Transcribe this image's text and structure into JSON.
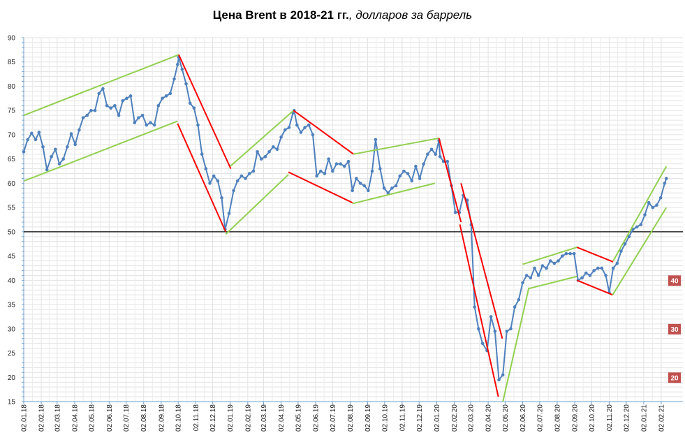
{
  "title": {
    "bold": "Цена Brent в 2018-21 гг.",
    "italic": ", долларов за баррель"
  },
  "colors": {
    "series": "#4f81bd",
    "up_channel": "#92d050",
    "down_channel": "#ff0000",
    "reference_line": "#000000",
    "badge": "#c0504d"
  },
  "chart_data": {
    "type": "line",
    "title": "Цена Brent в 2018-21 гг., долларов за баррель",
    "ylim": [
      15,
      90
    ],
    "y_ticks": [
      90,
      85,
      80,
      75,
      70,
      65,
      60,
      55,
      50,
      45,
      40,
      35,
      30,
      25,
      20,
      15
    ],
    "x_range": [
      "02.01.18",
      "11.02.21"
    ],
    "x_ticks": [
      "02.01.18",
      "02.02.18",
      "02.03.18",
      "02.04.18",
      "02.05.18",
      "02.06.18",
      "02.07.18",
      "02.08.18",
      "02.09.18",
      "02.10.18",
      "02.11.18",
      "02.12.18",
      "02.01.19",
      "02.02.19",
      "02.03.19",
      "02.04.19",
      "02.05.19",
      "02.06.19",
      "02.07.19",
      "02.08.19",
      "02.09.19",
      "02.10.19",
      "02.11.19",
      "02.12.19",
      "02.01.20",
      "02.02.20",
      "02.03.20",
      "02.04.20",
      "02.05.20",
      "02.06.20",
      "02.07.20",
      "02.08.20",
      "02.09.20",
      "02.10.20",
      "02.11.20",
      "02.12.20",
      "02.01.21",
      "02.02.21"
    ],
    "grid": true,
    "reference_line": 50,
    "series": [
      {
        "name": "",
        "points": [
          [
            "02.01.18",
            66.5
          ],
          [
            "09.01.18",
            69.0
          ],
          [
            "16.01.18",
            70.3
          ],
          [
            "23.01.18",
            69.0
          ],
          [
            "29.01.18",
            70.5
          ],
          [
            "05.02.18",
            67.5
          ],
          [
            "12.02.18",
            62.8
          ],
          [
            "20.02.18",
            65.5
          ],
          [
            "27.02.18",
            67.0
          ],
          [
            "06.03.18",
            64.0
          ],
          [
            "13.03.18",
            65.0
          ],
          [
            "20.03.18",
            67.5
          ],
          [
            "27.03.18",
            70.2
          ],
          [
            "03.04.18",
            68.0
          ],
          [
            "10.04.18",
            71.0
          ],
          [
            "17.04.18",
            73.5
          ],
          [
            "24.04.18",
            74.0
          ],
          [
            "01.05.18",
            75.0
          ],
          [
            "08.05.18",
            75.0
          ],
          [
            "15.05.18",
            78.5
          ],
          [
            "22.05.18",
            79.5
          ],
          [
            "29.05.18",
            76.0
          ],
          [
            "05.06.18",
            75.5
          ],
          [
            "12.06.18",
            76.0
          ],
          [
            "19.06.18",
            74.0
          ],
          [
            "26.06.18",
            77.0
          ],
          [
            "03.07.18",
            77.5
          ],
          [
            "10.07.18",
            78.0
          ],
          [
            "17.07.18",
            72.5
          ],
          [
            "24.07.18",
            73.5
          ],
          [
            "31.07.18",
            74.0
          ],
          [
            "07.08.18",
            72.0
          ],
          [
            "14.08.18",
            72.5
          ],
          [
            "21.08.18",
            72.0
          ],
          [
            "28.08.18",
            76.0
          ],
          [
            "04.09.18",
            77.5
          ],
          [
            "11.09.18",
            78.0
          ],
          [
            "18.09.18",
            78.5
          ],
          [
            "25.09.18",
            81.5
          ],
          [
            "01.10.18",
            84.5
          ],
          [
            "03.10.18",
            86.0
          ],
          [
            "09.10.18",
            83.5
          ],
          [
            "16.10.18",
            80.5
          ],
          [
            "23.10.18",
            76.5
          ],
          [
            "30.10.18",
            75.5
          ],
          [
            "06.11.18",
            72.0
          ],
          [
            "13.11.18",
            66.0
          ],
          [
            "20.11.18",
            63.0
          ],
          [
            "27.11.18",
            60.0
          ],
          [
            "04.12.18",
            61.5
          ],
          [
            "11.12.18",
            60.5
          ],
          [
            "18.12.18",
            57.0
          ],
          [
            "24.12.18",
            50.5
          ],
          [
            "31.12.18",
            53.8
          ],
          [
            "08.01.19",
            58.5
          ],
          [
            "15.01.19",
            60.5
          ],
          [
            "22.01.19",
            61.5
          ],
          [
            "29.01.19",
            61.0
          ],
          [
            "05.02.19",
            62.0
          ],
          [
            "12.02.19",
            62.5
          ],
          [
            "19.02.19",
            66.5
          ],
          [
            "26.02.19",
            65.0
          ],
          [
            "05.03.19",
            65.5
          ],
          [
            "12.03.19",
            66.5
          ],
          [
            "19.03.19",
            67.5
          ],
          [
            "26.03.19",
            67.0
          ],
          [
            "02.04.19",
            69.5
          ],
          [
            "09.04.19",
            71.0
          ],
          [
            "16.04.19",
            71.5
          ],
          [
            "23.04.19",
            74.5
          ],
          [
            "25.04.19",
            75.0
          ],
          [
            "30.04.19",
            72.0
          ],
          [
            "07.05.19",
            70.5
          ],
          [
            "14.05.19",
            71.5
          ],
          [
            "21.05.19",
            72.0
          ],
          [
            "28.05.19",
            70.0
          ],
          [
            "04.06.19",
            61.5
          ],
          [
            "11.06.19",
            62.5
          ],
          [
            "18.06.19",
            62.0
          ],
          [
            "25.06.19",
            65.0
          ],
          [
            "02.07.19",
            62.5
          ],
          [
            "09.07.19",
            64.0
          ],
          [
            "16.07.19",
            64.0
          ],
          [
            "23.07.19",
            63.5
          ],
          [
            "30.07.19",
            64.5
          ],
          [
            "06.08.19",
            58.5
          ],
          [
            "13.08.19",
            61.0
          ],
          [
            "20.08.19",
            60.0
          ],
          [
            "27.08.19",
            59.5
          ],
          [
            "03.09.19",
            58.5
          ],
          [
            "10.09.19",
            62.5
          ],
          [
            "16.09.19",
            69.0
          ],
          [
            "24.09.19",
            63.0
          ],
          [
            "01.10.19",
            59.0
          ],
          [
            "08.10.19",
            58.0
          ],
          [
            "15.10.19",
            59.0
          ],
          [
            "22.10.19",
            59.5
          ],
          [
            "29.10.19",
            61.5
          ],
          [
            "05.11.19",
            62.5
          ],
          [
            "12.11.19",
            62.0
          ],
          [
            "19.11.19",
            60.5
          ],
          [
            "26.11.19",
            63.5
          ],
          [
            "03.12.19",
            61.0
          ],
          [
            "10.12.19",
            64.0
          ],
          [
            "17.12.19",
            66.0
          ],
          [
            "24.12.19",
            67.0
          ],
          [
            "31.12.19",
            66.0
          ],
          [
            "06.01.20",
            68.8
          ],
          [
            "08.01.20",
            65.5
          ],
          [
            "14.01.20",
            64.5
          ],
          [
            "21.01.20",
            64.5
          ],
          [
            "28.01.20",
            59.5
          ],
          [
            "04.02.20",
            54.0
          ],
          [
            "11.02.20",
            54.0
          ],
          [
            "18.02.20",
            57.5
          ],
          [
            "25.02.20",
            56.5
          ],
          [
            "03.03.20",
            51.5
          ],
          [
            "09.03.20",
            34.5
          ],
          [
            "16.03.20",
            30.0
          ],
          [
            "23.03.20",
            27.0
          ],
          [
            "31.03.20",
            25.5
          ],
          [
            "07.04.20",
            32.5
          ],
          [
            "14.04.20",
            29.5
          ],
          [
            "21.04.20",
            19.5
          ],
          [
            "28.04.20",
            20.5
          ],
          [
            "05.05.20",
            29.5
          ],
          [
            "12.05.20",
            30.0
          ],
          [
            "19.05.20",
            34.5
          ],
          [
            "26.05.20",
            36.0
          ],
          [
            "02.06.20",
            39.5
          ],
          [
            "09.06.20",
            41.0
          ],
          [
            "16.06.20",
            40.5
          ],
          [
            "23.06.20",
            42.5
          ],
          [
            "30.06.20",
            41.0
          ],
          [
            "07.07.20",
            43.0
          ],
          [
            "14.07.20",
            42.5
          ],
          [
            "21.07.20",
            44.0
          ],
          [
            "28.07.20",
            43.5
          ],
          [
            "04.08.20",
            44.0
          ],
          [
            "11.08.20",
            45.0
          ],
          [
            "18.08.20",
            45.5
          ],
          [
            "25.08.20",
            45.5
          ],
          [
            "01.09.20",
            45.5
          ],
          [
            "08.09.20",
            40.0
          ],
          [
            "15.09.20",
            40.5
          ],
          [
            "22.09.20",
            41.5
          ],
          [
            "29.09.20",
            41.0
          ],
          [
            "06.10.20",
            42.0
          ],
          [
            "13.10.20",
            42.5
          ],
          [
            "20.10.20",
            42.5
          ],
          [
            "27.10.20",
            41.0
          ],
          [
            "02.11.20",
            37.5
          ],
          [
            "09.11.20",
            42.5
          ],
          [
            "16.11.20",
            43.5
          ],
          [
            "23.11.20",
            46.0
          ],
          [
            "30.11.20",
            47.5
          ],
          [
            "07.12.20",
            49.0
          ],
          [
            "14.12.20",
            50.5
          ],
          [
            "21.12.20",
            51.0
          ],
          [
            "28.12.20",
            51.5
          ],
          [
            "04.01.21",
            53.5
          ],
          [
            "11.01.21",
            56.0
          ],
          [
            "18.01.21",
            55.0
          ],
          [
            "25.01.21",
            55.5
          ],
          [
            "01.02.21",
            57.0
          ],
          [
            "08.02.21",
            60.0
          ],
          [
            "11.02.21",
            61.0
          ]
        ]
      }
    ],
    "trend_lines": [
      {
        "kind": "up",
        "from": [
          "02.01.18",
          74.0
        ],
        "to": [
          "03.10.18",
          86.5
        ]
      },
      {
        "kind": "up",
        "from": [
          "03.01.18",
          60.5
        ],
        "to": [
          "01.10.18",
          72.8
        ]
      },
      {
        "kind": "down",
        "from": [
          "03.10.18",
          86.5
        ],
        "to": [
          "03.01.19",
          63.0
        ]
      },
      {
        "kind": "down",
        "from": [
          "01.10.18",
          72.3
        ],
        "to": [
          "25.12.18",
          50.0
        ]
      },
      {
        "kind": "up",
        "from": [
          "02.01.19",
          63.5
        ],
        "to": [
          "24.04.19",
          75.0
        ]
      },
      {
        "kind": "up",
        "from": [
          "25.12.18",
          49.5
        ],
        "to": [
          "15.04.19",
          61.8
        ]
      },
      {
        "kind": "down",
        "from": [
          "24.04.19",
          75.0
        ],
        "to": [
          "08.08.19",
          66.0
        ]
      },
      {
        "kind": "down",
        "from": [
          "15.04.19",
          62.3
        ],
        "to": [
          "06.08.19",
          56.0
        ]
      },
      {
        "kind": "up",
        "from": [
          "08.08.19",
          66.0
        ],
        "to": [
          "06.01.20",
          69.3
        ]
      },
      {
        "kind": "up",
        "from": [
          "06.08.19",
          55.8
        ],
        "to": [
          "30.12.19",
          60.0
        ]
      },
      {
        "kind": "down",
        "from": [
          "06.01.20",
          69.3
        ],
        "to": [
          "14.02.20",
          52.0
        ]
      },
      {
        "kind": "down",
        "from": [
          "14.02.20",
          60.0
        ],
        "to": [
          "27.04.20",
          28.0
        ]
      },
      {
        "kind": "down",
        "from": [
          "12.02.20",
          51.5
        ],
        "to": [
          "20.04.20",
          16.0
        ]
      },
      {
        "kind": "up",
        "from": [
          "02.06.20",
          43.3
        ],
        "to": [
          "06.09.20",
          46.8
        ]
      },
      {
        "kind": "up",
        "from": [
          "28.04.20",
          15.0
        ],
        "to": [
          "13.06.20",
          38.5
        ]
      },
      {
        "kind": "up",
        "from": [
          "13.06.20",
          38.3
        ],
        "to": [
          "06.09.20",
          40.8
        ]
      },
      {
        "kind": "down",
        "from": [
          "06.09.20",
          46.8
        ],
        "to": [
          "09.11.20",
          43.8
        ]
      },
      {
        "kind": "down",
        "from": [
          "06.09.20",
          40.0
        ],
        "to": [
          "08.11.20",
          37.0
        ]
      },
      {
        "kind": "up",
        "from": [
          "09.11.20",
          44.0
        ],
        "to": [
          "11.02.21",
          63.5
        ]
      },
      {
        "kind": "up",
        "from": [
          "08.11.20",
          37.0
        ],
        "to": [
          "11.02.21",
          55.0
        ]
      }
    ],
    "badges": [
      "40",
      "30",
      "20"
    ]
  }
}
